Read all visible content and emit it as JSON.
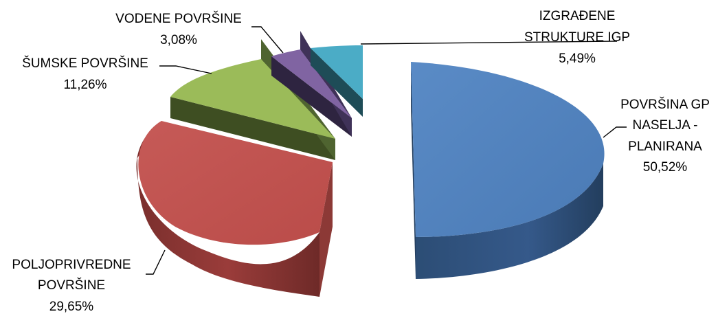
{
  "chart_data": {
    "type": "pie",
    "title": "",
    "slices": [
      {
        "category_lines": [
          "POVRŠINA GP",
          "NASELJA -",
          "PLANIRANA"
        ],
        "value": 50.52,
        "value_label": "50,52%",
        "color": "#4F81BD"
      },
      {
        "category_lines": [
          "IZGRAĐENE",
          "STRUKTURE IGP"
        ],
        "value": 5.49,
        "value_label": "5,49%",
        "color": "#4BACC6"
      },
      {
        "category_lines": [
          "VODENE POVRŠINE"
        ],
        "value": 3.08,
        "value_label": "3,08%",
        "color": "#8064A2"
      },
      {
        "category_lines": [
          "ŠUMSKE POVRŠINE"
        ],
        "value": 11.26,
        "value_label": "11,26%",
        "color": "#9BBB59"
      },
      {
        "category_lines": [
          "POLJOPRIVREDNE",
          "POVRŠINE"
        ],
        "value": 29.65,
        "value_label": "29,65%",
        "color": "#C0504D"
      }
    ],
    "style": "3d-exploded"
  }
}
